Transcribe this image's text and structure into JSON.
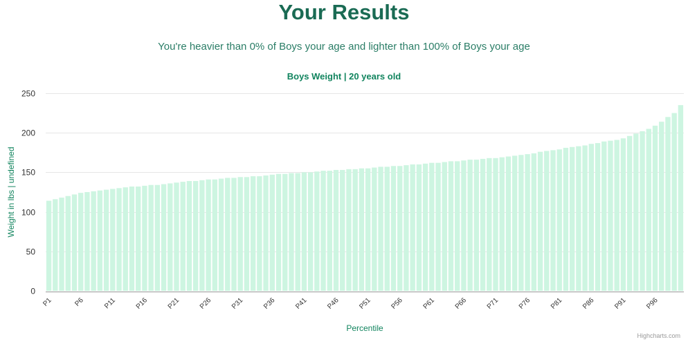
{
  "header": {
    "title": "Your Results",
    "subtitle": "You're heavier than 0% of Boys your age and lighter than 100% of Boys your age"
  },
  "credits": "Highcharts.com",
  "colors": {
    "bar": "#cdf5e1",
    "title": "#1a6b54",
    "chart_title": "#11845e",
    "gridline": "#e6e6e6",
    "axis_line": "#999999"
  },
  "chart_data": {
    "type": "bar",
    "title": "Boys Weight | 20 years old",
    "xlabel": "Percentile",
    "ylabel": "Weight in lbs | undefined",
    "ylim": [
      0,
      250
    ],
    "yticks": [
      0,
      50,
      100,
      150,
      200,
      250
    ],
    "grid": true,
    "legend": "none",
    "categories": [
      "P1",
      "P2",
      "P3",
      "P4",
      "P5",
      "P6",
      "P7",
      "P8",
      "P9",
      "P10",
      "P11",
      "P12",
      "P13",
      "P14",
      "P15",
      "P16",
      "P17",
      "P18",
      "P19",
      "P20",
      "P21",
      "P22",
      "P23",
      "P24",
      "P25",
      "P26",
      "P27",
      "P28",
      "P29",
      "P30",
      "P31",
      "P32",
      "P33",
      "P34",
      "P35",
      "P36",
      "P37",
      "P38",
      "P39",
      "P40",
      "P41",
      "P42",
      "P43",
      "P44",
      "P45",
      "P46",
      "P47",
      "P48",
      "P49",
      "P50",
      "P51",
      "P52",
      "P53",
      "P54",
      "P55",
      "P56",
      "P57",
      "P58",
      "P59",
      "P60",
      "P61",
      "P62",
      "P63",
      "P64",
      "P65",
      "P66",
      "P67",
      "P68",
      "P69",
      "P70",
      "P71",
      "P72",
      "P73",
      "P74",
      "P75",
      "P76",
      "P77",
      "P78",
      "P79",
      "P80",
      "P81",
      "P82",
      "P83",
      "P84",
      "P85",
      "P86",
      "P87",
      "P88",
      "P89",
      "P90",
      "P91",
      "P92",
      "P93",
      "P94",
      "P95",
      "P96",
      "P97",
      "P98",
      "P99",
      "P100"
    ],
    "xtick_labels": [
      "P1",
      "P6",
      "P11",
      "P16",
      "P21",
      "P26",
      "P31",
      "P36",
      "P41",
      "P46",
      "P51",
      "P56",
      "P61",
      "P66",
      "P71",
      "P76",
      "P81",
      "P86",
      "P91",
      "P96"
    ],
    "values": [
      114,
      116,
      118,
      120,
      122,
      124,
      125,
      126,
      127,
      128,
      129,
      130,
      131,
      132,
      132,
      133,
      134,
      134,
      135,
      136,
      137,
      138,
      139,
      139,
      140,
      141,
      141,
      142,
      143,
      143,
      144,
      144,
      145,
      145,
      146,
      147,
      148,
      148,
      149,
      149,
      150,
      150,
      151,
      152,
      152,
      153,
      153,
      154,
      154,
      155,
      155,
      156,
      157,
      157,
      158,
      158,
      159,
      160,
      160,
      161,
      162,
      162,
      163,
      164,
      164,
      165,
      166,
      166,
      167,
      168,
      168,
      169,
      170,
      171,
      172,
      173,
      174,
      176,
      177,
      178,
      179,
      181,
      182,
      183,
      184,
      186,
      187,
      189,
      190,
      191,
      193,
      196,
      199,
      202,
      205,
      209,
      214,
      220,
      225,
      235
    ]
  }
}
